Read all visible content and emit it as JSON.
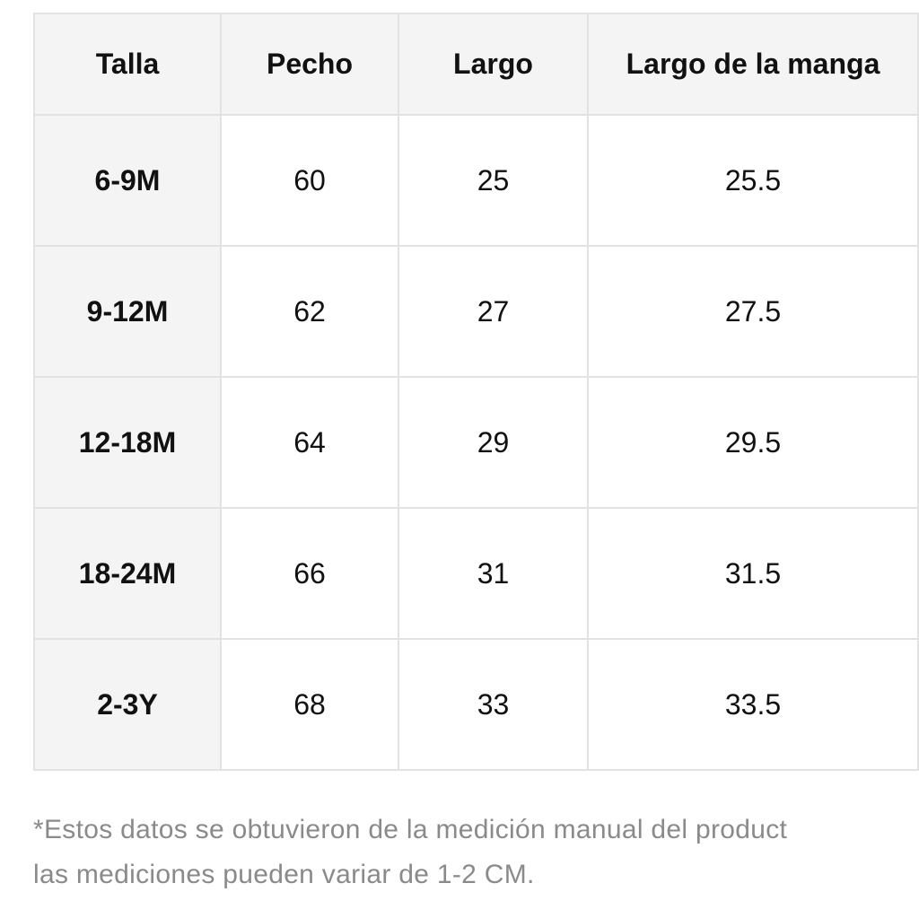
{
  "table": {
    "header": [
      "Talla",
      "Pecho",
      "Largo",
      "Largo de la manga"
    ],
    "rows": [
      [
        "6-9M",
        "60",
        "25",
        "25.5"
      ],
      [
        "9-12M",
        "62",
        "27",
        "27.5"
      ],
      [
        "12-18M",
        "64",
        "29",
        "29.5"
      ],
      [
        "18-24M",
        "66",
        "31",
        "31.5"
      ],
      [
        "2-3Y",
        "68",
        "33",
        "33.5"
      ]
    ]
  },
  "note": {
    "lines": [
      "*Estos datos se obtuvieron de la medición manual del product",
      "las mediciones pueden variar de 1-2 CM."
    ]
  }
}
